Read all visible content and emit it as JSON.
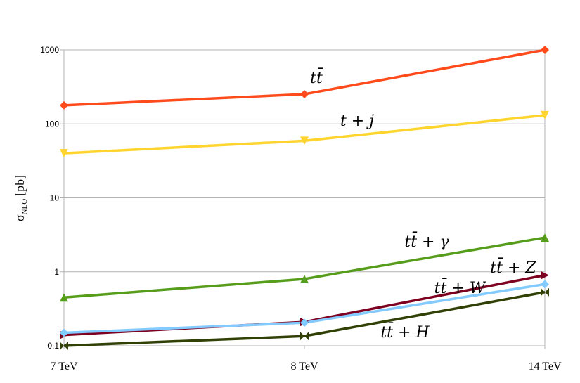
{
  "chart_data": {
    "type": "line",
    "title": "",
    "xlabel": "",
    "ylabel": "σ",
    "ylabel_sub": "NLO",
    "ylabel_unit": "[pb]",
    "yscale": "log",
    "ylim": [
      0.1,
      1000
    ],
    "grid": true,
    "categories": [
      "7 TeV",
      "8 TeV",
      "14 TeV"
    ],
    "y_ticks": [
      {
        "value": 0.1,
        "label": "0.1"
      },
      {
        "value": 1,
        "label": "1"
      },
      {
        "value": 10,
        "label": "10"
      },
      {
        "value": 100,
        "label": "100"
      },
      {
        "value": 1000,
        "label": "1000"
      }
    ],
    "series": [
      {
        "name": "tt̄",
        "color": "#ff4a1c",
        "marker": "diamond",
        "values": [
          178,
          252,
          1000
        ]
      },
      {
        "name": "t + j",
        "color": "#ffd42e",
        "marker": "triangle-down",
        "values": [
          40,
          59,
          131
        ]
      },
      {
        "name": "tt̄ + γ",
        "color": "#579d1c",
        "marker": "triangle-up",
        "values": [
          0.45,
          0.8,
          2.9
        ]
      },
      {
        "name": "tt̄ + Z",
        "color": "#7e0021",
        "marker": "triangle-right",
        "values": [
          0.14,
          0.21,
          0.9
        ]
      },
      {
        "name": "tt̄ + W",
        "color": "#83caff",
        "marker": "diamond",
        "values": [
          0.15,
          0.205,
          0.68
        ]
      },
      {
        "name": "tt̄ + H",
        "color": "#314004",
        "marker": "bowtie",
        "values": [
          0.1,
          0.135,
          0.53
        ]
      }
    ]
  }
}
